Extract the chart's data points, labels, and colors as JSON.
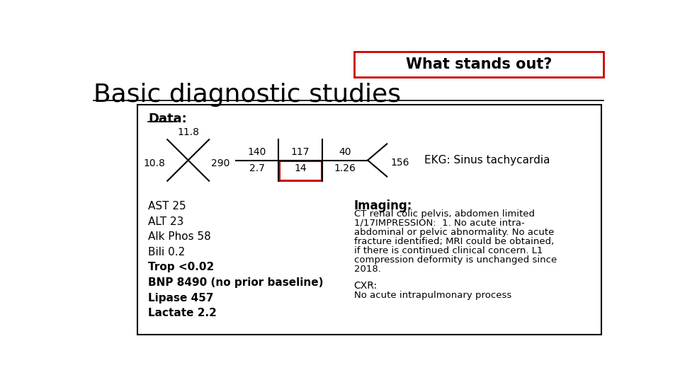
{
  "title": "Basic diagnostic studies",
  "what_stands_out": "What stands out?",
  "ekg_text": "EKG: Sinus tachycardia",
  "data_label": "Data:",
  "cbc_values": {
    "top": "11.8",
    "left": "10.8",
    "right": "290"
  },
  "bmp_values": {
    "top_left": "140",
    "top_mid": "117",
    "top_right": "40",
    "bot_left": "2.7",
    "bot_mid": "14",
    "bot_right": "1.26",
    "right": "156"
  },
  "lab_lines": [
    {
      "text": "AST 25",
      "bold": false
    },
    {
      "text": "ALT 23",
      "bold": false
    },
    {
      "text": "Alk Phos 58",
      "bold": false
    },
    {
      "text": "Bili 0.2",
      "bold": false
    },
    {
      "text": "Trop <0.02",
      "bold": true
    },
    {
      "text": "BNP 8490 (no prior baseline)",
      "bold": true
    },
    {
      "text": "Lipase 457",
      "bold": true
    },
    {
      "text": "Lactate 2.2",
      "bold": true
    }
  ],
  "imaging_title": "Imaging:",
  "imaging_lines": [
    "CT renal colic pelvis, abdomen limited",
    "1/17IMPRESSION:  1. No acute intra-",
    "abdominal or pelvic abnormality. No acute",
    "fracture identified; MRI could be obtained,",
    "if there is continued clinical concern. L1",
    "compression deformity is unchanged since",
    "2018."
  ],
  "cxr_title": "CXR:",
  "cxr_text": "No acute intrapulmonary process",
  "bg_color": "#ffffff",
  "red_box_color": "#cc0000",
  "what_box_border": "#cc0000"
}
